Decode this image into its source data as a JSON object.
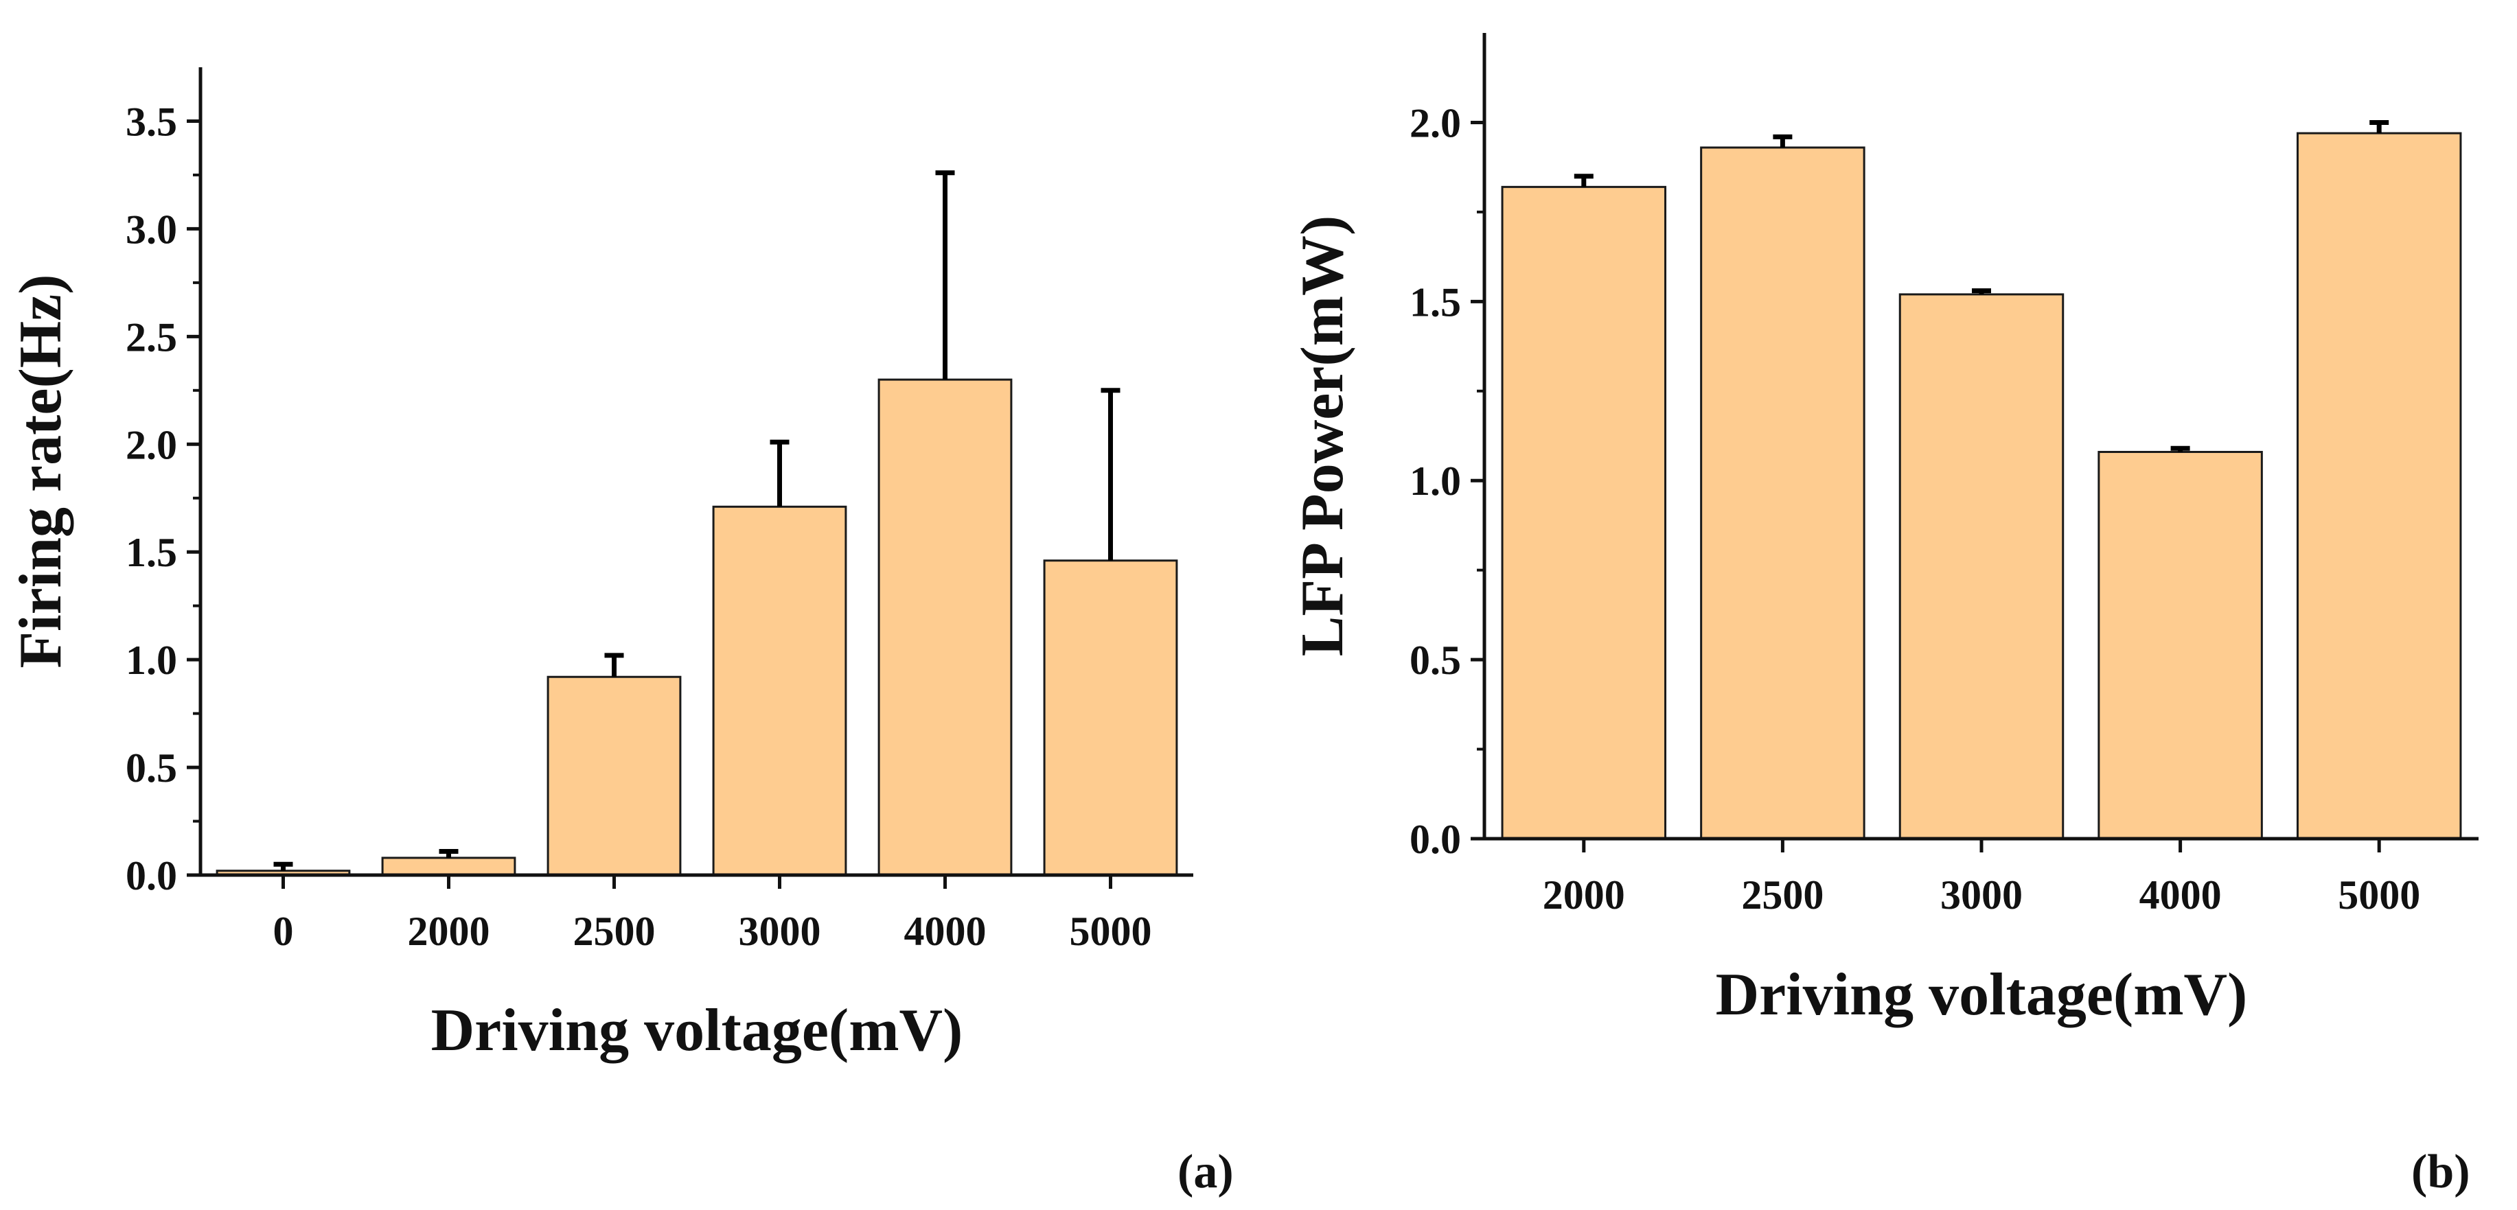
{
  "colors": {
    "bar_fill": "#FECC90",
    "bar_stroke": "#1a1a1a",
    "axis": "#111111"
  },
  "chart_data": [
    {
      "type": "bar",
      "panel_label": {
        "open": "(",
        "letter": "a",
        "close": ")"
      },
      "categories": [
        "0",
        "2000",
        "2500",
        "3000",
        "4000",
        "5000"
      ],
      "values": [
        0.02,
        0.08,
        0.92,
        1.71,
        2.3,
        1.46
      ],
      "errors": [
        0.03,
        0.03,
        0.1,
        0.3,
        0.96,
        0.79
      ],
      "title": "",
      "xlabel": "Driving voltage(mV)",
      "ylabel": "Firing rate(Hz)",
      "ylim": [
        0,
        3.75
      ],
      "yticks": [
        "0.0",
        "0.5",
        "1.0",
        "1.5",
        "2.0",
        "2.5",
        "3.0",
        "3.5"
      ],
      "grid": false
    },
    {
      "type": "bar",
      "panel_label": {
        "open": "(",
        "letter": "b",
        "close": ")"
      },
      "categories": [
        "2000",
        "2500",
        "3000",
        "4000",
        "5000"
      ],
      "values": [
        1.82,
        1.93,
        1.52,
        1.08,
        1.97
      ],
      "errors": [
        0.03,
        0.03,
        0.01,
        0.01,
        0.03
      ],
      "title": "",
      "xlabel": "Driving voltage(mV)",
      "ylabel": "LFP Power(mW)",
      "ylim": [
        0,
        2.25
      ],
      "yticks": [
        "0.0",
        "0.5",
        "1.0",
        "1.5",
        "2.0"
      ],
      "grid": false
    }
  ]
}
